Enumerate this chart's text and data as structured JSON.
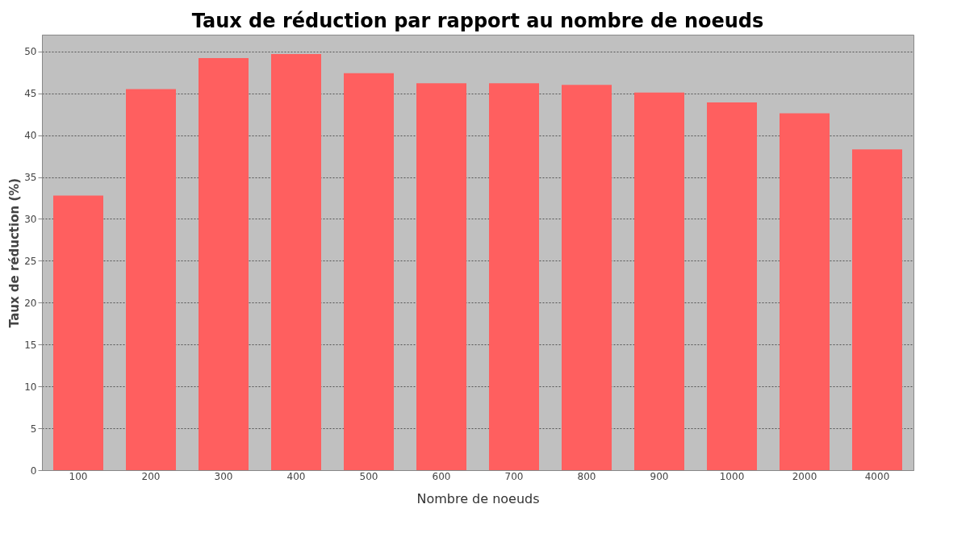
{
  "chart_data": {
    "type": "bar",
    "title": "Taux de réduction par rapport au nombre de noeuds",
    "xlabel": "Nombre de noeuds",
    "ylabel": "Taux de réduction (%)",
    "categories": [
      "100",
      "200",
      "300",
      "400",
      "500",
      "600",
      "700",
      "800",
      "900",
      "1000",
      "2000",
      "4000"
    ],
    "values": [
      32.8,
      45.5,
      49.2,
      49.7,
      47.4,
      46.2,
      46.2,
      46.0,
      45.1,
      43.9,
      42.6,
      38.3
    ],
    "color": "#ff5f5f",
    "ylim": [
      0,
      52
    ],
    "yticks": [
      0,
      5,
      10,
      15,
      20,
      25,
      30,
      35,
      40,
      45,
      50
    ],
    "grid": "y"
  }
}
